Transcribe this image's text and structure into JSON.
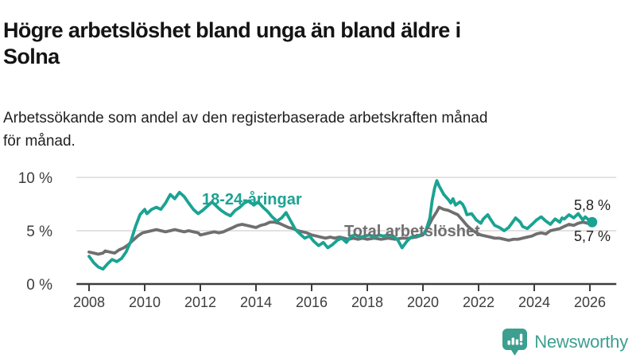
{
  "header": {
    "title_line1": "Högre arbetslöshet bland unga än bland äldre i",
    "title_line2": "Solna",
    "subtitle_line1": "Arbetssökande som andel av den registerbaserade arbetskraften månad",
    "subtitle_line2": "för månad."
  },
  "branding": {
    "name": "Newsworthy",
    "color": "#3c9f90"
  },
  "colors": {
    "young_series": "#1aa392",
    "total_series": "#6f6f6f",
    "grid": "#d8d8d8",
    "axis": "#3d3d3d",
    "end_label_text": "#1f1f1f"
  },
  "chart_data": {
    "type": "line",
    "unit": "%",
    "grid": "horizontal",
    "legend_position": "inline-labels",
    "xlim": [
      2007.55,
      2026.95
    ],
    "ylim": [
      0,
      10.8
    ],
    "x_ticks": [
      "2008",
      "2010",
      "2012",
      "2014",
      "2016",
      "2018",
      "2020",
      "2022",
      "2024",
      "2026"
    ],
    "x_tick_years": [
      2008,
      2010,
      2012,
      2014,
      2016,
      2018,
      2020,
      2022,
      2024,
      2026
    ],
    "y_ticks": [
      {
        "value": 0,
        "label": "0 %"
      },
      {
        "value": 5,
        "label": "5 %"
      },
      {
        "value": 10,
        "label": "10 %"
      }
    ],
    "series": [
      {
        "name": "Total arbetslöshet",
        "color": "#6f6f6f",
        "end_label": "5,7 %",
        "end_value": 5.7,
        "end_dot": false,
        "points": [
          [
            2008.0,
            3.0
          ],
          [
            2008.17,
            2.9
          ],
          [
            2008.33,
            2.8
          ],
          [
            2008.5,
            2.9
          ],
          [
            2008.58,
            3.1
          ],
          [
            2008.75,
            3.0
          ],
          [
            2008.92,
            2.9
          ],
          [
            2009.08,
            3.2
          ],
          [
            2009.25,
            3.4
          ],
          [
            2009.42,
            3.7
          ],
          [
            2009.58,
            4.1
          ],
          [
            2009.75,
            4.5
          ],
          [
            2009.92,
            4.8
          ],
          [
            2010.08,
            4.9
          ],
          [
            2010.25,
            5.0
          ],
          [
            2010.42,
            5.1
          ],
          [
            2010.58,
            5.0
          ],
          [
            2010.75,
            4.9
          ],
          [
            2010.92,
            5.0
          ],
          [
            2011.08,
            5.1
          ],
          [
            2011.25,
            5.0
          ],
          [
            2011.42,
            4.9
          ],
          [
            2011.58,
            5.0
          ],
          [
            2011.75,
            4.9
          ],
          [
            2011.92,
            4.8
          ],
          [
            2012.0,
            4.6
          ],
          [
            2012.17,
            4.7
          ],
          [
            2012.33,
            4.8
          ],
          [
            2012.5,
            4.9
          ],
          [
            2012.67,
            4.8
          ],
          [
            2012.83,
            4.9
          ],
          [
            2013.0,
            5.1
          ],
          [
            2013.17,
            5.3
          ],
          [
            2013.33,
            5.5
          ],
          [
            2013.5,
            5.6
          ],
          [
            2013.67,
            5.5
          ],
          [
            2013.83,
            5.4
          ],
          [
            2014.0,
            5.3
          ],
          [
            2014.17,
            5.5
          ],
          [
            2014.33,
            5.6
          ],
          [
            2014.5,
            5.8
          ],
          [
            2014.67,
            5.8
          ],
          [
            2014.83,
            5.7
          ],
          [
            2015.0,
            5.5
          ],
          [
            2015.17,
            5.3
          ],
          [
            2015.33,
            5.2
          ],
          [
            2015.5,
            5.0
          ],
          [
            2015.67,
            4.9
          ],
          [
            2015.83,
            4.8
          ],
          [
            2016.0,
            4.6
          ],
          [
            2016.17,
            4.5
          ],
          [
            2016.33,
            4.4
          ],
          [
            2016.5,
            4.3
          ],
          [
            2016.67,
            4.4
          ],
          [
            2016.83,
            4.3
          ],
          [
            2017.0,
            4.4
          ],
          [
            2017.17,
            4.3
          ],
          [
            2017.33,
            4.2
          ],
          [
            2017.5,
            4.3
          ],
          [
            2017.67,
            4.2
          ],
          [
            2017.83,
            4.3
          ],
          [
            2018.0,
            4.2
          ],
          [
            2018.25,
            4.3
          ],
          [
            2018.5,
            4.2
          ],
          [
            2018.75,
            4.3
          ],
          [
            2019.0,
            4.2
          ],
          [
            2019.25,
            4.3
          ],
          [
            2019.5,
            4.3
          ],
          [
            2019.75,
            4.4
          ],
          [
            2020.0,
            4.6
          ],
          [
            2020.17,
            5.3
          ],
          [
            2020.33,
            6.1
          ],
          [
            2020.5,
            6.8
          ],
          [
            2020.58,
            7.2
          ],
          [
            2020.75,
            7.0
          ],
          [
            2020.92,
            6.9
          ],
          [
            2021.08,
            6.7
          ],
          [
            2021.25,
            6.5
          ],
          [
            2021.42,
            6.0
          ],
          [
            2021.58,
            5.5
          ],
          [
            2021.75,
            5.1
          ],
          [
            2021.92,
            4.8
          ],
          [
            2022.08,
            4.6
          ],
          [
            2022.25,
            4.5
          ],
          [
            2022.42,
            4.4
          ],
          [
            2022.58,
            4.3
          ],
          [
            2022.75,
            4.3
          ],
          [
            2022.92,
            4.2
          ],
          [
            2023.08,
            4.1
          ],
          [
            2023.25,
            4.2
          ],
          [
            2023.42,
            4.2
          ],
          [
            2023.58,
            4.3
          ],
          [
            2023.75,
            4.4
          ],
          [
            2023.92,
            4.5
          ],
          [
            2024.08,
            4.7
          ],
          [
            2024.25,
            4.8
          ],
          [
            2024.42,
            4.7
          ],
          [
            2024.58,
            5.0
          ],
          [
            2024.75,
            5.1
          ],
          [
            2024.92,
            5.2
          ],
          [
            2025.08,
            5.4
          ],
          [
            2025.25,
            5.6
          ],
          [
            2025.42,
            5.5
          ],
          [
            2025.58,
            5.7
          ],
          [
            2025.75,
            5.8
          ],
          [
            2025.92,
            5.7
          ],
          [
            2026.08,
            5.7
          ]
        ]
      },
      {
        "name": "18-24-åringar",
        "color": "#1aa392",
        "end_label": "5,8 %",
        "end_value": 5.8,
        "end_dot": true,
        "points": [
          [
            2008.0,
            2.6
          ],
          [
            2008.17,
            2.0
          ],
          [
            2008.33,
            1.6
          ],
          [
            2008.5,
            1.4
          ],
          [
            2008.67,
            1.9
          ],
          [
            2008.83,
            2.3
          ],
          [
            2009.0,
            2.1
          ],
          [
            2009.17,
            2.4
          ],
          [
            2009.33,
            3.0
          ],
          [
            2009.5,
            4.0
          ],
          [
            2009.67,
            5.4
          ],
          [
            2009.83,
            6.5
          ],
          [
            2010.0,
            7.0
          ],
          [
            2010.08,
            6.6
          ],
          [
            2010.25,
            7.0
          ],
          [
            2010.42,
            7.2
          ],
          [
            2010.58,
            7.0
          ],
          [
            2010.75,
            7.6
          ],
          [
            2010.92,
            8.4
          ],
          [
            2011.08,
            8.0
          ],
          [
            2011.25,
            8.6
          ],
          [
            2011.42,
            8.2
          ],
          [
            2011.58,
            7.6
          ],
          [
            2011.75,
            7.0
          ],
          [
            2011.92,
            6.6
          ],
          [
            2012.08,
            6.9
          ],
          [
            2012.25,
            7.3
          ],
          [
            2012.42,
            7.7
          ],
          [
            2012.58,
            7.3
          ],
          [
            2012.75,
            6.9
          ],
          [
            2012.92,
            6.6
          ],
          [
            2013.08,
            6.4
          ],
          [
            2013.25,
            6.9
          ],
          [
            2013.42,
            7.2
          ],
          [
            2013.58,
            7.6
          ],
          [
            2013.75,
            7.8
          ],
          [
            2013.92,
            7.4
          ],
          [
            2014.08,
            7.7
          ],
          [
            2014.25,
            7.2
          ],
          [
            2014.42,
            6.8
          ],
          [
            2014.58,
            6.3
          ],
          [
            2014.75,
            5.9
          ],
          [
            2014.92,
            6.2
          ],
          [
            2015.08,
            6.7
          ],
          [
            2015.25,
            5.9
          ],
          [
            2015.42,
            5.1
          ],
          [
            2015.58,
            4.7
          ],
          [
            2015.75,
            4.3
          ],
          [
            2015.92,
            4.5
          ],
          [
            2016.08,
            4.0
          ],
          [
            2016.25,
            3.6
          ],
          [
            2016.42,
            3.9
          ],
          [
            2016.58,
            3.4
          ],
          [
            2016.75,
            3.7
          ],
          [
            2016.92,
            4.1
          ],
          [
            2017.08,
            4.3
          ],
          [
            2017.25,
            3.9
          ],
          [
            2017.42,
            4.5
          ],
          [
            2017.58,
            4.6
          ],
          [
            2017.75,
            4.4
          ],
          [
            2017.92,
            4.5
          ],
          [
            2018.08,
            4.6
          ],
          [
            2018.25,
            4.4
          ],
          [
            2018.42,
            4.6
          ],
          [
            2018.58,
            4.5
          ],
          [
            2018.75,
            4.6
          ],
          [
            2018.92,
            4.5
          ],
          [
            2019.08,
            4.2
          ],
          [
            2019.25,
            3.4
          ],
          [
            2019.42,
            4.0
          ],
          [
            2019.58,
            4.4
          ],
          [
            2019.75,
            4.5
          ],
          [
            2019.92,
            4.6
          ],
          [
            2020.08,
            4.8
          ],
          [
            2020.25,
            6.2
          ],
          [
            2020.33,
            7.8
          ],
          [
            2020.42,
            9.0
          ],
          [
            2020.5,
            9.7
          ],
          [
            2020.58,
            9.2
          ],
          [
            2020.75,
            8.4
          ],
          [
            2020.92,
            7.9
          ],
          [
            2021.0,
            7.6
          ],
          [
            2021.08,
            8.0
          ],
          [
            2021.17,
            7.4
          ],
          [
            2021.33,
            7.7
          ],
          [
            2021.42,
            7.5
          ],
          [
            2021.5,
            7.1
          ],
          [
            2021.58,
            6.5
          ],
          [
            2021.75,
            6.6
          ],
          [
            2021.92,
            6.0
          ],
          [
            2022.08,
            5.7
          ],
          [
            2022.17,
            6.1
          ],
          [
            2022.33,
            6.5
          ],
          [
            2022.42,
            6.1
          ],
          [
            2022.58,
            5.5
          ],
          [
            2022.75,
            5.3
          ],
          [
            2022.92,
            5.0
          ],
          [
            2023.08,
            5.3
          ],
          [
            2023.25,
            5.9
          ],
          [
            2023.33,
            6.2
          ],
          [
            2023.5,
            5.8
          ],
          [
            2023.58,
            5.4
          ],
          [
            2023.75,
            5.2
          ],
          [
            2023.92,
            5.6
          ],
          [
            2024.08,
            6.0
          ],
          [
            2024.25,
            6.3
          ],
          [
            2024.42,
            5.9
          ],
          [
            2024.58,
            5.6
          ],
          [
            2024.75,
            6.1
          ],
          [
            2024.92,
            5.8
          ],
          [
            2025.0,
            6.2
          ],
          [
            2025.08,
            6.1
          ],
          [
            2025.25,
            6.5
          ],
          [
            2025.42,
            6.2
          ],
          [
            2025.58,
            6.6
          ],
          [
            2025.75,
            6.0
          ],
          [
            2025.83,
            6.3
          ],
          [
            2025.92,
            6.1
          ],
          [
            2026.08,
            5.8
          ]
        ]
      }
    ]
  }
}
